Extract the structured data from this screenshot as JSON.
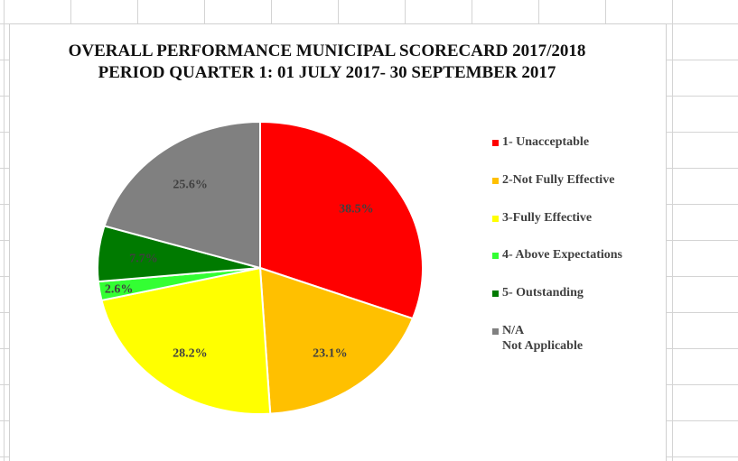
{
  "chart_data": {
    "type": "pie",
    "title": "OVERALL PERFORMANCE MUNICIPAL SCORECARD  2017/2018",
    "subtitle": "PERIOD QUARTER 1: 01 JULY 2017- 30 SEPTEMBER 2017",
    "categories": [
      "1- Unacceptable",
      "2-Not Fully Effective",
      "3-Fully Effective",
      "4- Above Expectations",
      "5- Outstanding",
      "N/A\nNot Applicable"
    ],
    "values": [
      38.5,
      23.1,
      28.2,
      2.6,
      7.7,
      25.6
    ],
    "value_labels": [
      "38.5%",
      "23.1%",
      "28.2%",
      "2.6%",
      "7.7%",
      "25.6%"
    ],
    "colors": [
      "#ff0000",
      "#ffc000",
      "#ffff00",
      "#33ff33",
      "#007a00",
      "#808080"
    ],
    "legend": "right"
  }
}
